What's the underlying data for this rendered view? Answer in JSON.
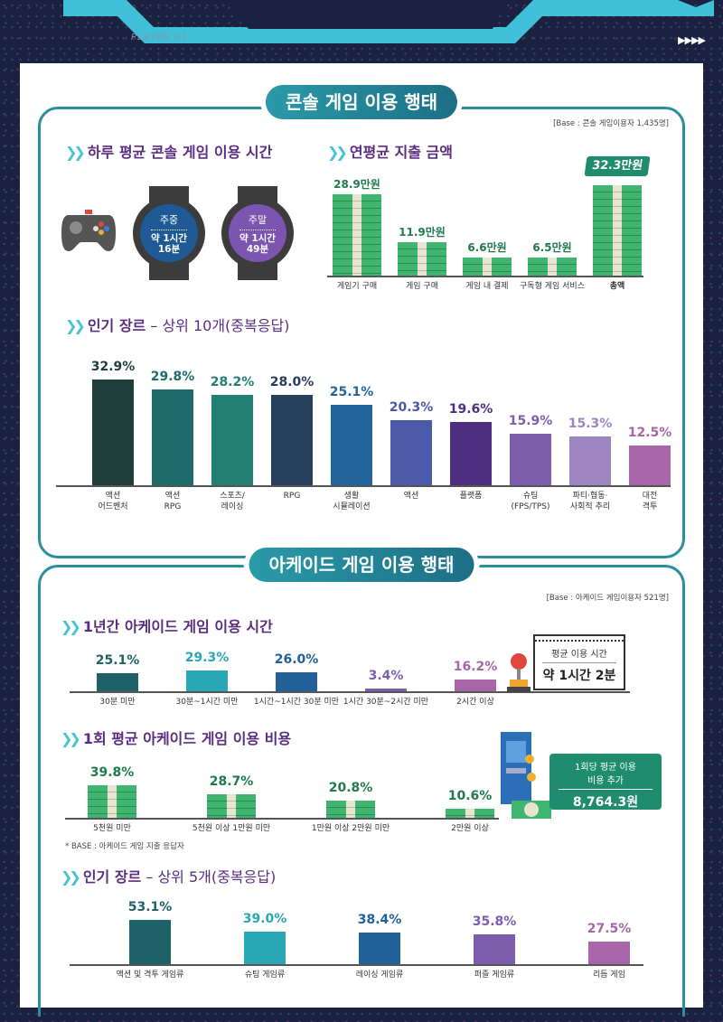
{
  "header": {
    "player": "PLAYER 01",
    "arrows": "▶▶▶▶"
  },
  "console": {
    "title": "콘솔 게임 이용 행태",
    "base": "[Base : 콘솔 게임이용자 1,435명]",
    "daily": {
      "title": "하루 평균 콘솔 게임 이용 시간",
      "weekday": {
        "label": "주중",
        "time": "약 1시간",
        "min": "16분"
      },
      "weekend": {
        "label": "주말",
        "time": "약 1시간",
        "min": "49분"
      }
    },
    "spend": {
      "title": "연평균 지출 금액"
    },
    "genre": {
      "title": "인기 장르",
      "suffix": " – 상위 10개(중복응답)"
    }
  },
  "arcade": {
    "title": "아케이드 게임 이용 행태",
    "base": "[Base : 아케이드 게임이용자 521명]",
    "time": {
      "title": "1년간 아케이드 게임 이용 시간",
      "avg_label": "평균 이용 시간",
      "avg_value": "약 1시간 2분"
    },
    "cost": {
      "title": "1회 평균 아케이드 게임 이용 비용",
      "avg_label1": "1회당 평균 이용",
      "avg_label2": "비용 추가",
      "avg_value": "8,764.3원",
      "note": "* BASE : 아케이드 게임 지출 응답자"
    },
    "genre": {
      "title": "인기 장르",
      "suffix": " – 상위 5개(중복응답)"
    }
  },
  "chart_data": [
    {
      "type": "bar",
      "id": "console-spend",
      "unit": "만원",
      "categories": [
        "게임기 구매",
        "게임 구매",
        "게임 내 결제",
        "구독형 게임 서비스",
        "총액"
      ],
      "values": [
        28.9,
        11.9,
        6.6,
        6.5,
        32.3
      ],
      "value_labels": [
        "28.9만원",
        "11.9만원",
        "6.6만원",
        "6.5만원",
        "32.3만원"
      ],
      "color": "#3fb56f"
    },
    {
      "type": "bar",
      "id": "console-genre",
      "categories": [
        "액션\n어드벤처",
        "액션\nRPG",
        "스포츠/\n레이싱",
        "RPG",
        "생활\n시뮬레이션",
        "액션",
        "플랫폼",
        "슈팅\n(FPS/TPS)",
        "파티·협동·\n사회적 추리",
        "대전\n격투"
      ],
      "values": [
        32.9,
        29.8,
        28.2,
        28.0,
        25.1,
        20.3,
        19.6,
        15.9,
        15.3,
        12.5
      ],
      "value_labels": [
        "32.9%",
        "29.8%",
        "28.2%",
        "28.0%",
        "25.1%",
        "20.3%",
        "19.6%",
        "15.9%",
        "15.3%",
        "12.5%"
      ],
      "colors": [
        "#1f3d3a",
        "#1e6b6b",
        "#237f73",
        "#263f5c",
        "#22659a",
        "#4a5aa8",
        "#4e2e80",
        "#7d5ead",
        "#9c85c0",
        "#a866a8"
      ]
    },
    {
      "type": "bar",
      "id": "arcade-time",
      "categories": [
        "30분 미만",
        "30분~1시간 미만",
        "1시간~1시간 30분 미만",
        "1시간 30분~2시간 미만",
        "2시간 이상"
      ],
      "values": [
        25.1,
        29.3,
        26.0,
        3.4,
        16.2
      ],
      "value_labels": [
        "25.1%",
        "29.3%",
        "26.0%",
        "3.4%",
        "16.2%"
      ],
      "colors": [
        "#1f6168",
        "#2aa6b4",
        "#22609a",
        "#7d5ead",
        "#a866a8"
      ]
    },
    {
      "type": "bar",
      "id": "arcade-cost",
      "categories": [
        "5천원 미만",
        "5천원 이상 1만원 미만",
        "1만원 이상 2만원 미만",
        "2만원 이상"
      ],
      "values": [
        39.8,
        28.7,
        20.8,
        10.6
      ],
      "value_labels": [
        "39.8%",
        "28.7%",
        "20.8%",
        "10.6%"
      ],
      "color": "#3fb56f"
    },
    {
      "type": "bar",
      "id": "arcade-genre",
      "categories": [
        "액션 및 격투 게임류",
        "슈팅 게임류",
        "레이싱 게임류",
        "퍼즐 게임류",
        "리듬 게임"
      ],
      "values": [
        53.1,
        39.0,
        38.4,
        35.8,
        27.5
      ],
      "value_labels": [
        "53.1%",
        "39.0%",
        "38.4%",
        "35.8%",
        "27.5%"
      ],
      "colors": [
        "#1f6168",
        "#2aa6b4",
        "#22609a",
        "#7d5ead",
        "#a866a8"
      ]
    }
  ]
}
